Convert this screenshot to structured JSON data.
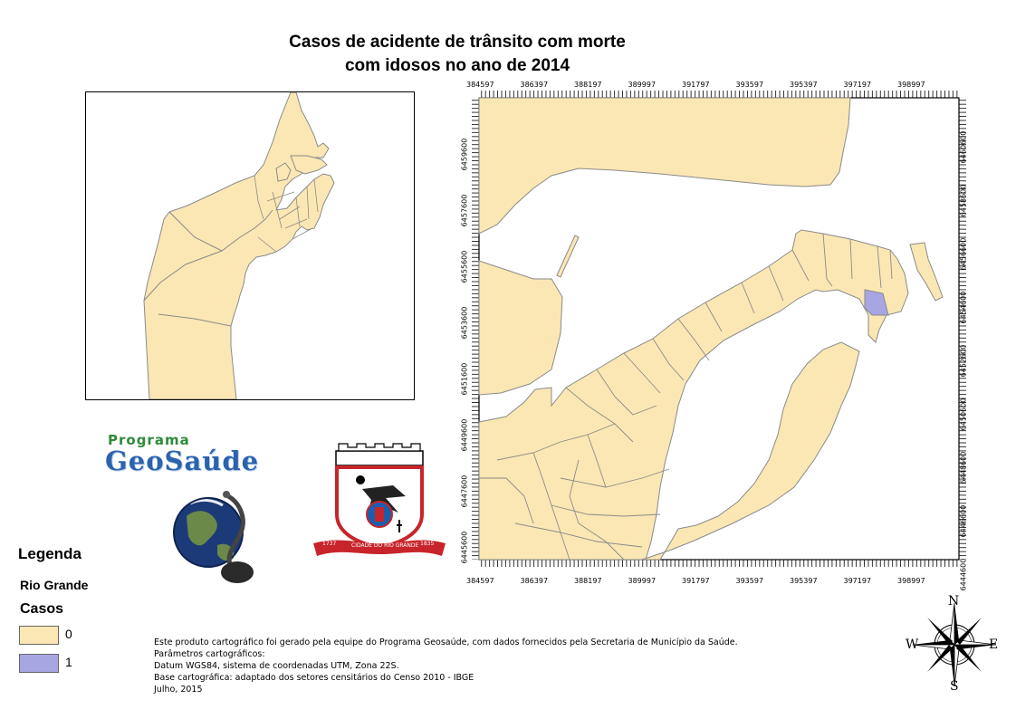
{
  "title": {
    "line1": "Casos de acidente de trânsito com morte",
    "line2": "com idosos no ano de 2014"
  },
  "map": {
    "x_ticks": [
      "384597",
      "386397",
      "388197",
      "389997",
      "391797",
      "393597",
      "395397",
      "397197",
      "398997"
    ],
    "y_ticks": [
      "6445600",
      "6447600",
      "6449600",
      "6451600",
      "6453600",
      "6455600",
      "6457600",
      "6459600"
    ],
    "y_ticks_right": [
      "6444600",
      "6446600",
      "6448600",
      "6450600",
      "6452600",
      "6454600",
      "6456600",
      "6458600",
      "6460600"
    ],
    "colors": {
      "land": "#fbe7b3",
      "case": "#a7a5e2",
      "border": "#8a8a8a",
      "water": "#ffffff"
    }
  },
  "logos": {
    "program_label": "Programa",
    "program_name": "GeoSaúde",
    "coat_banner_left": "1737",
    "coat_banner_mid": "CIDADE DO RIO GRANDE",
    "coat_banner_right": "1835"
  },
  "legend": {
    "title": "Legenda",
    "layer": "Rio Grande",
    "field": "Casos",
    "items": [
      {
        "label": "0",
        "color": "#fbe7b3"
      },
      {
        "label": "1",
        "color": "#a7a5e2"
      }
    ]
  },
  "credits": [
    "Este produto cartográfico foi gerado pela equipe do Programa Geosaúde, com dados fornecidos pela Secretaria de Município da Saúde.",
    "Parâmetros cartográficos:",
    "Datum WGS84, sistema de coordenadas UTM, Zona 22S.",
    "Base cartográfica: adaptado dos setores censitários do Censo 2010 - IBGE",
    "Julho, 2015"
  ],
  "compass": {
    "n": "N",
    "s": "S",
    "e": "E",
    "w": "W"
  }
}
